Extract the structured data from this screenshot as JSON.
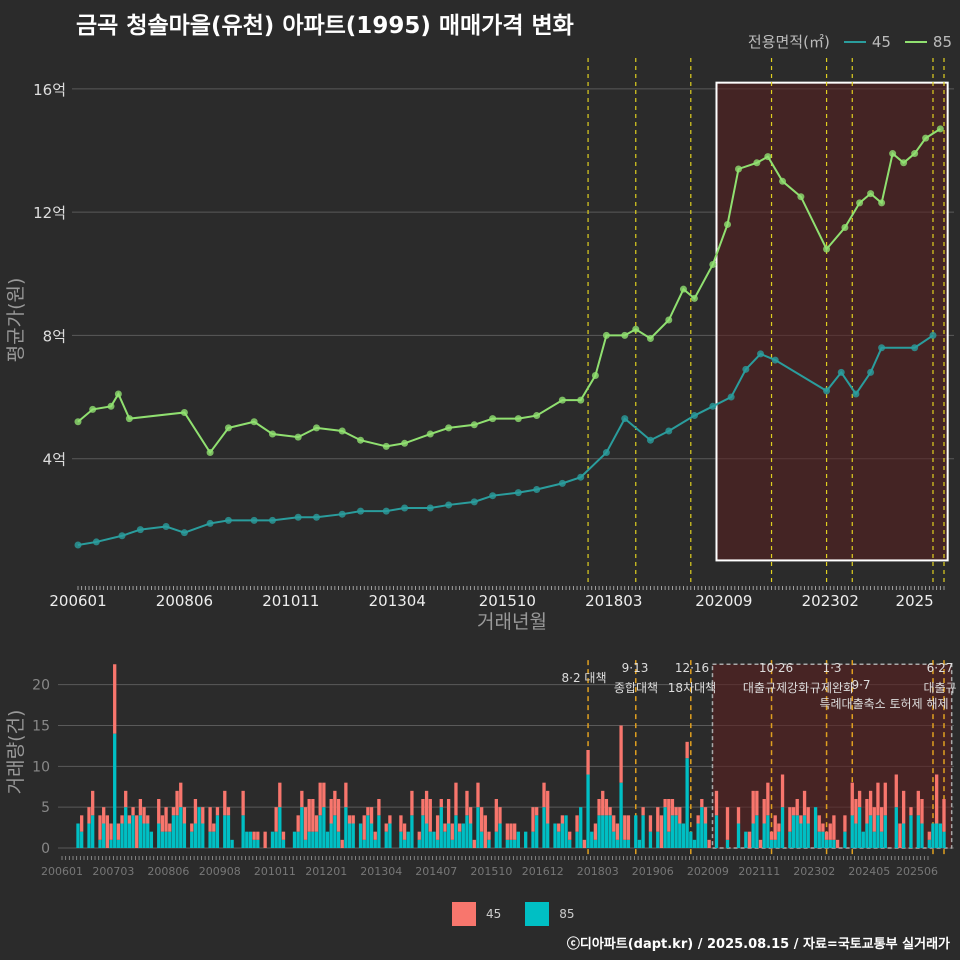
{
  "title": "금곡 청솔마을(유천) 아파트(1995) 매매가격 변화",
  "credit": "ⓒ디아파트(dapt.kr) / 2025.08.15 / 자료=국토교통부 실거래가",
  "legend_top": {
    "label": "전용면적(㎡)",
    "items": [
      {
        "name": "45",
        "color": "#2a9d9d"
      },
      {
        "name": "85",
        "color": "#90e070"
      }
    ]
  },
  "legend_bottom": {
    "items": [
      {
        "name": "45",
        "color": "#f8766d"
      },
      {
        "name": "85",
        "color": "#00bfc4"
      }
    ]
  },
  "chart_data": [
    {
      "type": "line",
      "xlabel": "거래년월",
      "ylabel": "평균가(원)",
      "x_ticks": [
        "200601",
        "200806",
        "201011",
        "201304",
        "201510",
        "201803",
        "202009",
        "202302",
        "2025"
      ],
      "y_ticks": [
        "4억",
        "8억",
        "12억",
        "16억"
      ],
      "ylim": [
        0,
        17
      ],
      "highlight_range": [
        "2020-07",
        "2025-10"
      ],
      "policy_lines": [
        "2017-08",
        "2018-09",
        "2019-12",
        "2021-10",
        "2023-01",
        "2023-08",
        "2025-06",
        "2025-09"
      ],
      "series": [
        {
          "name": "45",
          "color": "#2a9d9d",
          "points": [
            [
              "2006-01",
              1.2
            ],
            [
              "2006-06",
              1.3
            ],
            [
              "2007-01",
              1.5
            ],
            [
              "2007-06",
              1.7
            ],
            [
              "2008-01",
              1.8
            ],
            [
              "2008-06",
              1.6
            ],
            [
              "2009-01",
              1.9
            ],
            [
              "2009-06",
              2.0
            ],
            [
              "2010-01",
              2.0
            ],
            [
              "2010-06",
              2.0
            ],
            [
              "2011-01",
              2.1
            ],
            [
              "2011-06",
              2.1
            ],
            [
              "2012-01",
              2.2
            ],
            [
              "2012-06",
              2.3
            ],
            [
              "2013-01",
              2.3
            ],
            [
              "2013-06",
              2.4
            ],
            [
              "2014-01",
              2.4
            ],
            [
              "2014-06",
              2.5
            ],
            [
              "2015-01",
              2.6
            ],
            [
              "2015-06",
              2.8
            ],
            [
              "2016-01",
              2.9
            ],
            [
              "2016-06",
              3.0
            ],
            [
              "2017-01",
              3.2
            ],
            [
              "2017-06",
              3.4
            ],
            [
              "2018-01",
              4.2
            ],
            [
              "2018-06",
              5.3
            ],
            [
              "2019-01",
              4.6
            ],
            [
              "2019-06",
              4.9
            ],
            [
              "2020-01",
              5.4
            ],
            [
              "2020-06",
              5.7
            ],
            [
              "2020-11",
              6.0
            ],
            [
              "2021-03",
              6.9
            ],
            [
              "2021-07",
              7.4
            ],
            [
              "2021-11",
              7.2
            ],
            [
              "2023-01",
              6.2
            ],
            [
              "2023-05",
              6.8
            ],
            [
              "2023-09",
              6.1
            ],
            [
              "2024-01",
              6.8
            ],
            [
              "2024-04",
              7.6
            ],
            [
              "2025-01",
              7.6
            ],
            [
              "2025-06",
              8.0
            ]
          ]
        },
        {
          "name": "85",
          "color": "#90e070",
          "points": [
            [
              "2006-01",
              5.2
            ],
            [
              "2006-05",
              5.6
            ],
            [
              "2006-10",
              5.7
            ],
            [
              "2006-12",
              6.1
            ],
            [
              "2007-03",
              5.3
            ],
            [
              "2008-06",
              5.5
            ],
            [
              "2009-01",
              4.2
            ],
            [
              "2009-06",
              5.0
            ],
            [
              "2010-01",
              5.2
            ],
            [
              "2010-06",
              4.8
            ],
            [
              "2011-01",
              4.7
            ],
            [
              "2011-06",
              5.0
            ],
            [
              "2012-01",
              4.9
            ],
            [
              "2012-06",
              4.6
            ],
            [
              "2013-01",
              4.4
            ],
            [
              "2013-06",
              4.5
            ],
            [
              "2014-01",
              4.8
            ],
            [
              "2014-06",
              5.0
            ],
            [
              "2015-01",
              5.1
            ],
            [
              "2015-06",
              5.3
            ],
            [
              "2016-01",
              5.3
            ],
            [
              "2016-06",
              5.4
            ],
            [
              "2017-01",
              5.9
            ],
            [
              "2017-06",
              5.9
            ],
            [
              "2017-10",
              6.7
            ],
            [
              "2018-01",
              8.0
            ],
            [
              "2018-06",
              8.0
            ],
            [
              "2018-09",
              8.2
            ],
            [
              "2019-01",
              7.9
            ],
            [
              "2019-06",
              8.5
            ],
            [
              "2019-10",
              9.5
            ],
            [
              "2020-01",
              9.2
            ],
            [
              "2020-06",
              10.3
            ],
            [
              "2020-10",
              11.6
            ],
            [
              "2021-01",
              13.4
            ],
            [
              "2021-06",
              13.6
            ],
            [
              "2021-09",
              13.8
            ],
            [
              "2022-01",
              13.0
            ],
            [
              "2022-06",
              12.5
            ],
            [
              "2023-01",
              10.8
            ],
            [
              "2023-06",
              11.5
            ],
            [
              "2023-10",
              12.3
            ],
            [
              "2024-01",
              12.6
            ],
            [
              "2024-04",
              12.3
            ],
            [
              "2024-07",
              13.9
            ],
            [
              "2024-10",
              13.6
            ],
            [
              "2025-01",
              13.9
            ],
            [
              "2025-04",
              14.4
            ],
            [
              "2025-08",
              14.7
            ]
          ]
        }
      ]
    },
    {
      "type": "bar",
      "stacked": true,
      "ylabel": "거래량(건)",
      "y_ticks": [
        "0",
        "5",
        "10",
        "15",
        "20"
      ],
      "ylim": [
        0,
        24
      ],
      "x_ticks": [
        "200601",
        "200703",
        "200806",
        "200908",
        "201011",
        "201201",
        "201304",
        "201407",
        "201510",
        "201612",
        "201803",
        "201906",
        "202009",
        "202111",
        "202302",
        "202405",
        "202506"
      ],
      "highlight_range": [
        "2020-07",
        "2025-10"
      ],
      "annotations": [
        {
          "date": "8·2 대책",
          "text": "8·2 대책"
        },
        {
          "date": "9·13",
          "text": "종합대책"
        },
        {
          "date": "12·16",
          "text": "18차대책"
        },
        {
          "date": "10·26",
          "text": "대출규제강화"
        },
        {
          "date": "1·3",
          "text": "규제완화"
        },
        {
          "date": "9·7",
          "text": "특례대출축소 토허제 해제"
        },
        {
          "date": "6·27",
          "text": "대출규"
        }
      ],
      "series": [
        {
          "name": "45",
          "color": "#f8766d"
        },
        {
          "name": "85",
          "color": "#00bfc4"
        }
      ],
      "peaks": [
        {
          "month": "2006-11",
          "s45": 8.5,
          "s85": 14
        },
        {
          "month": "2017-08",
          "s45": 3,
          "s85": 9
        },
        {
          "month": "2018-05",
          "s45": 7,
          "s85": 8
        },
        {
          "month": "2019-11",
          "s45": 2,
          "s85": 11
        },
        {
          "month": "2025-07",
          "s45": 6,
          "s85": 3
        }
      ]
    }
  ]
}
